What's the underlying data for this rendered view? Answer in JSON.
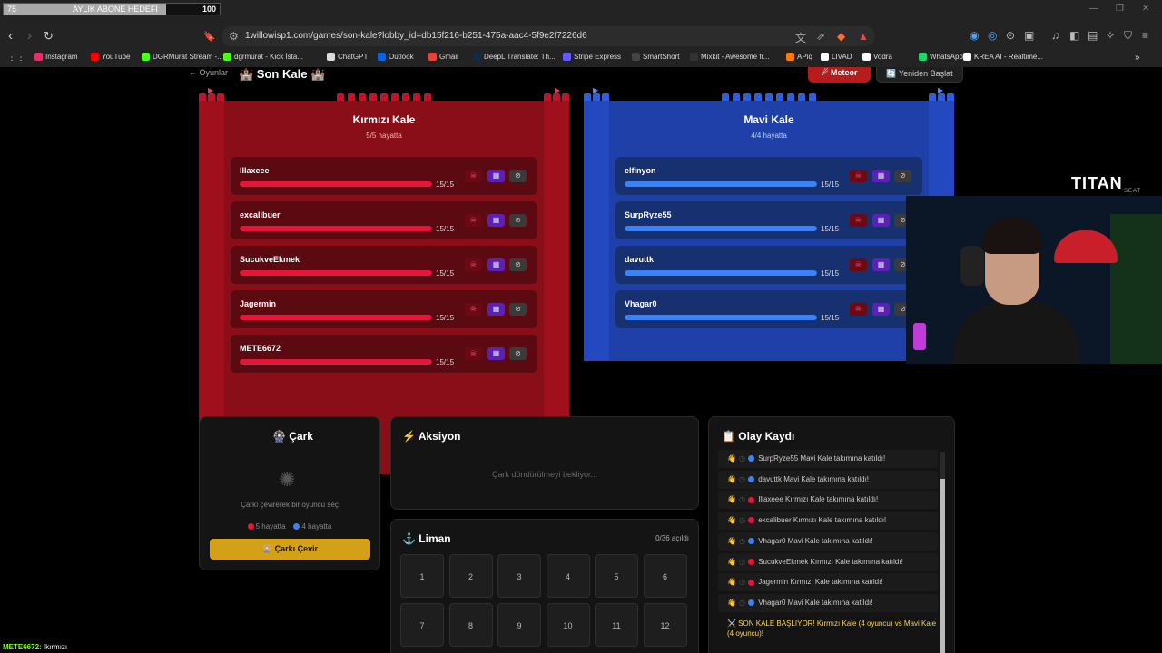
{
  "subscriber_goal": {
    "current": "75",
    "label": "AYLIK ABONE HEDEFİ",
    "target": "100",
    "fraction": 0.75
  },
  "browser": {
    "url": "1willowisp1.com/games/son-kale?lobby_id=db15f216-b251-475a-aac4-5f9e2f7226d6",
    "bookmarks": [
      {
        "label": "Instagram",
        "icon": "instagram-icon",
        "color": "#e1306c"
      },
      {
        "label": "YouTube",
        "icon": "youtube-icon",
        "color": "#ff0000"
      },
      {
        "label": "DGRMurat Stream -...",
        "icon": "kick-icon",
        "color": "#53fc18"
      },
      {
        "label": "dgrmurat - Kick İsta...",
        "icon": "kick-icon",
        "color": "#53fc18"
      },
      {
        "label": "ChatGPT",
        "icon": "chatgpt-icon",
        "color": "#dddddd"
      },
      {
        "label": "Outlook",
        "icon": "outlook-icon",
        "color": "#0a64d6"
      },
      {
        "label": "Gmail",
        "icon": "gmail-icon",
        "color": "#ea4335"
      },
      {
        "label": "DeepL Translate: Th...",
        "icon": "deepl-icon",
        "color": "#0f2b46"
      },
      {
        "label": "Stripe Express",
        "icon": "stripe-icon",
        "color": "#635bff"
      },
      {
        "label": "SmartShort",
        "icon": "smartshort-icon",
        "color": "#444444"
      },
      {
        "label": "Mixkit - Awesome fr...",
        "icon": "mixkit-icon",
        "color": "#333333"
      },
      {
        "label": "APiq",
        "icon": "apiq-icon",
        "color": "#ff7a00"
      },
      {
        "label": "LIVAD",
        "icon": "livad-icon",
        "color": "#ffffff"
      },
      {
        "label": "Vodra",
        "icon": "vodra-icon",
        "color": "#ffffff"
      },
      {
        "label": "WhatsApp",
        "icon": "whatsapp-icon",
        "color": "#25d366"
      },
      {
        "label": "KREA AI - Realtime...",
        "icon": "krea-icon",
        "color": "#ffffff"
      }
    ]
  },
  "header": {
    "back": "← Oyunlar",
    "title": "🏰 Son Kale 🏰",
    "meteor": "☄ Meteor",
    "restart": "🔄 Yeniden Başlat"
  },
  "red_castle": {
    "title": "Kırmızı Kale",
    "alive": "5/5 hayatta",
    "players": [
      {
        "name": "Illaxeee",
        "hp": "15/15",
        "hp_fraction": 1.0
      },
      {
        "name": "excalibuer",
        "hp": "15/15",
        "hp_fraction": 1.0
      },
      {
        "name": "SucukveEkmek",
        "hp": "15/15",
        "hp_fraction": 1.0
      },
      {
        "name": "Jagermin",
        "hp": "15/15",
        "hp_fraction": 1.0
      },
      {
        "name": "METE6672",
        "hp": "15/15",
        "hp_fraction": 1.0
      }
    ]
  },
  "blue_castle": {
    "title": "Mavi Kale",
    "alive": "4/4 hayatta",
    "players": [
      {
        "name": "elfinyon",
        "hp": "15/15",
        "hp_fraction": 1.0
      },
      {
        "name": "SurpRyze55",
        "hp": "15/15",
        "hp_fraction": 1.0
      },
      {
        "name": "davuttk",
        "hp": "15/15",
        "hp_fraction": 1.0
      },
      {
        "name": "Vhagar0",
        "hp": "15/15",
        "hp_fraction": 1.0
      }
    ]
  },
  "wheel": {
    "title": "🎡 Çark",
    "hint": "Çarkı çevirerek bir oyuncu seç",
    "red_alive": "5 hayatta",
    "blue_alive": "4 hayatta",
    "spin": "🎡 Çarkı Çevir"
  },
  "action": {
    "title": "⚡ Aksiyon",
    "waiting": "Çark döndürülmeyi bekliyor..."
  },
  "harbor": {
    "title": "⚓ Liman",
    "count": "0/36 açıldı",
    "cells": [
      "1",
      "2",
      "3",
      "4",
      "5",
      "6",
      "7",
      "8",
      "9",
      "10",
      "11",
      "12"
    ]
  },
  "log": {
    "title": "📋 Olay Kaydı",
    "entries": [
      {
        "text": "SurpRyze55 Mavi Kale takımına katıldı!",
        "team": "blue"
      },
      {
        "text": "davuttk Mavi Kale takımına katıldı!",
        "team": "blue"
      },
      {
        "text": "Illaxeee Kırmızı Kale takımına katıldı!",
        "team": "red"
      },
      {
        "text": "excalibuer Kırmızı Kale takımına katıldı!",
        "team": "red"
      },
      {
        "text": "Vhagar0 Mavi Kale takımına katıldı!",
        "team": "blue"
      },
      {
        "text": "SucukveEkmek Kırmızı Kale takımına katıldı!",
        "team": "red"
      },
      {
        "text": "Jagermin Kırmızı Kale takımına katıldı!",
        "team": "red"
      },
      {
        "text": "Vhagar0 Mavi Kale takımına katıldı!",
        "team": "blue"
      }
    ],
    "start": "⚔️ SON KALE BAŞLIYOR! Kırmızı Kale (4 oyuncu) vs Mavi Kale (4 oyuncu)!"
  },
  "overlay": {
    "brand": "TITAN",
    "brand_sub": "SEAT",
    "chat_user": "METE6672:",
    "chat_msg": "!kırmızı"
  },
  "colors": {
    "red": "#e5163a",
    "blue": "#3b82f6",
    "gold": "#d4a017"
  }
}
